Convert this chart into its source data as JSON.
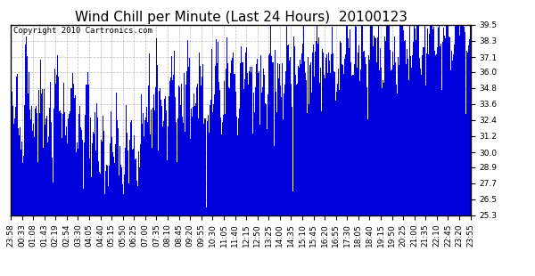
{
  "title": "Wind Chill per Minute (Last 24 Hours)  20100123",
  "copyright_text": "Copyright 2010 Cartronics.com",
  "bar_color": "#0000dd",
  "background_color": "#ffffff",
  "plot_background": "#ffffff",
  "grid_color": "#aaaaaa",
  "ylim_min": 25.3,
  "ylim_max": 39.5,
  "yticks": [
    25.3,
    26.5,
    27.7,
    28.9,
    30.0,
    31.2,
    32.4,
    33.6,
    34.8,
    36.0,
    37.1,
    38.3,
    39.5
  ],
  "xtick_labels": [
    "23:58",
    "00:33",
    "01:08",
    "01:43",
    "02:19",
    "02:54",
    "03:30",
    "04:05",
    "04:40",
    "05:15",
    "05:50",
    "06:25",
    "07:00",
    "07:35",
    "08:10",
    "08:45",
    "09:20",
    "09:55",
    "10:30",
    "11:05",
    "11:40",
    "12:15",
    "12:50",
    "13:25",
    "14:00",
    "14:35",
    "15:10",
    "15:45",
    "16:20",
    "16:55",
    "17:30",
    "18:05",
    "18:40",
    "19:15",
    "19:50",
    "20:25",
    "21:00",
    "21:35",
    "22:10",
    "22:45",
    "23:20",
    "23:55"
  ],
  "title_fontsize": 11,
  "tick_fontsize": 6.5,
  "copyright_fontsize": 6.5,
  "n_points": 1440,
  "seed": 123
}
